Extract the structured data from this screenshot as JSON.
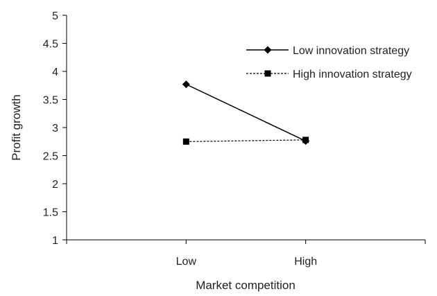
{
  "chart_data": {
    "type": "line",
    "title": "",
    "xlabel": "Market competition",
    "ylabel": "Profit growth",
    "categories": [
      "Low",
      "High"
    ],
    "ylim": [
      1,
      5
    ],
    "yticks": [
      "1",
      "1.5",
      "2",
      "2.5",
      "3",
      "3.5",
      "4",
      "4.5",
      "5"
    ],
    "grid": false,
    "legend_position": "top-right",
    "series": [
      {
        "name": "Low innovation strategy",
        "values": [
          3.77,
          2.76
        ],
        "marker": "diamond",
        "line_style": "solid",
        "color": "#000000"
      },
      {
        "name": "High innovation strategy",
        "values": [
          2.75,
          2.78
        ],
        "marker": "square",
        "line_style": "dotted",
        "color": "#000000"
      }
    ]
  }
}
